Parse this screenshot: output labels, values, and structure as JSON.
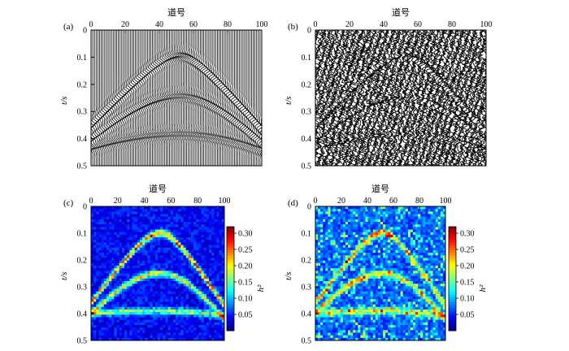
{
  "chart_data": [
    {
      "type": "wiggle",
      "panel_label": "(a)",
      "xlabel": "道号",
      "ylabel": "t/s",
      "xlim": [
        0,
        100
      ],
      "ylim": [
        0,
        0.5
      ],
      "xticks": [
        "0",
        "20",
        "40",
        "60",
        "80",
        "100"
      ],
      "yticks": [
        "0",
        "0.1",
        "0.2",
        "0.3",
        "0.4",
        "0.5"
      ],
      "traces": 101,
      "events": [
        {
          "apex_trace": 52,
          "apex_t": 0.09,
          "t_at_trace0": 0.35,
          "t_at_trace100": 0.36
        },
        {
          "apex_trace": 52,
          "apex_t": 0.24,
          "t_at_trace0": 0.4,
          "t_at_trace100": 0.41
        },
        {
          "apex_trace": 52,
          "apex_t": 0.38,
          "t_at_trace0": 0.43,
          "t_at_trace100": 0.44
        }
      ],
      "noise": "none"
    },
    {
      "type": "wiggle",
      "panel_label": "(b)",
      "xlabel": "道号",
      "ylabel": "t/s",
      "xlim": [
        0,
        100
      ],
      "ylim": [
        0,
        0.5
      ],
      "xticks": [
        "0",
        "20",
        "40",
        "60",
        "80",
        "100"
      ],
      "yticks": [
        "0",
        "0.1",
        "0.2",
        "0.3",
        "0.4",
        "0.5"
      ],
      "traces": 101,
      "events": [
        {
          "apex_trace": 52,
          "apex_t": 0.09,
          "t_at_trace0": 0.35,
          "t_at_trace100": 0.37
        },
        {
          "apex_trace": 52,
          "apex_t": 0.24,
          "t_at_trace0": 0.4,
          "t_at_trace100": 0.41
        },
        {
          "apex_trace": 52,
          "apex_t": 0.38,
          "t_at_trace0": 0.43,
          "t_at_trace100": 0.44
        }
      ],
      "noise": "random"
    },
    {
      "type": "heatmap",
      "panel_label": "(c)",
      "xlabel": "道号",
      "ylabel": "t/s",
      "colorbar_label": "h²",
      "xlim": [
        0,
        100
      ],
      "ylim": [
        0,
        0.5
      ],
      "xticks": [
        "0",
        "20",
        "40",
        "60",
        "80",
        "100"
      ],
      "yticks": [
        "0",
        "0.1",
        "0.2",
        "0.3",
        "0.4",
        "0.5"
      ],
      "clim": [
        0,
        0.32
      ],
      "colorbar_ticks": [
        "0.05",
        "0.10",
        "0.15",
        "0.20",
        "0.25",
        "0.30"
      ],
      "colormap": "jet",
      "events": [
        {
          "apex_trace": 52,
          "apex_t": 0.1,
          "t_at_trace0": 0.36,
          "t_at_trace100": 0.37,
          "peak": 0.22
        },
        {
          "apex_trace": 52,
          "apex_t": 0.25,
          "t_at_trace0": 0.4,
          "t_at_trace100": 0.42,
          "peak": 0.17
        },
        {
          "apex_trace": 52,
          "apex_t": 0.39,
          "t_at_trace0": 0.4,
          "t_at_trace100": 0.41,
          "peak": 0.14
        }
      ],
      "background_level": 0.04
    },
    {
      "type": "heatmap",
      "panel_label": "(d)",
      "xlabel": "道号",
      "ylabel": "t/s",
      "colorbar_label": "h²",
      "xlim": [
        0,
        100
      ],
      "ylim": [
        0,
        0.5
      ],
      "xticks": [
        "0",
        "20",
        "40",
        "60",
        "80",
        "100"
      ],
      "yticks": [
        "0",
        "0.1",
        "0.2",
        "0.3",
        "0.4",
        "0.5"
      ],
      "clim": [
        0,
        0.32
      ],
      "colorbar_ticks": [
        "0.05",
        "0.10",
        "0.15",
        "0.20",
        "0.25",
        "0.30"
      ],
      "colormap": "jet",
      "events": [
        {
          "apex_trace": 52,
          "apex_t": 0.1,
          "t_at_trace0": 0.36,
          "t_at_trace100": 0.37,
          "peak": 0.16
        },
        {
          "apex_trace": 52,
          "apex_t": 0.25,
          "t_at_trace0": 0.4,
          "t_at_trace100": 0.42,
          "peak": 0.14
        },
        {
          "apex_trace": 52,
          "apex_t": 0.39,
          "t_at_trace0": 0.4,
          "t_at_trace100": 0.41,
          "peak": 0.12
        }
      ],
      "background_level": 0.07
    }
  ]
}
